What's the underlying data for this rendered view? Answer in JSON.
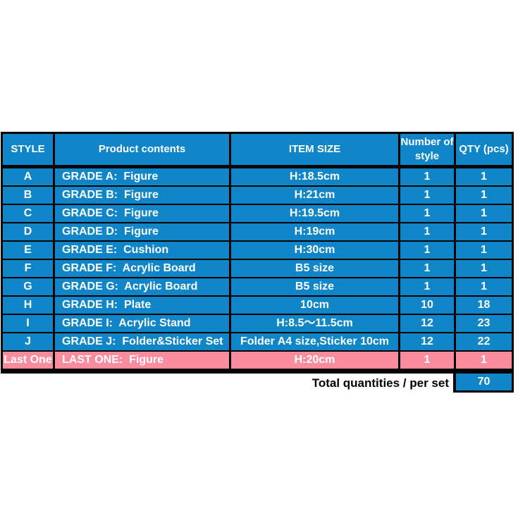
{
  "page": {
    "background": "#ffffff"
  },
  "colors": {
    "cell_blue": "#1086c8",
    "last_one_pink": "#fa8c9e",
    "border_black": "#000000",
    "cell_text_white": "#ffffff",
    "total_text_black": "#000000"
  },
  "table": {
    "headers": {
      "style": "STYLE",
      "contents": "Product contents",
      "size": "ITEM SIZE",
      "styles": "Number of style",
      "qty": "QTY (pcs)"
    },
    "rows": [
      {
        "style": "A",
        "contents": "GRADE A:  Figure",
        "size": "H:18.5cm",
        "styles": "1",
        "qty": "1"
      },
      {
        "style": "B",
        "contents": "GRADE B:  Figure",
        "size": "H:21cm",
        "styles": "1",
        "qty": "1"
      },
      {
        "style": "C",
        "contents": "GRADE C:  Figure",
        "size": "H:19.5cm",
        "styles": "1",
        "qty": "1"
      },
      {
        "style": "D",
        "contents": "GRADE D:  Figure",
        "size": "H:19cm",
        "styles": "1",
        "qty": "1"
      },
      {
        "style": "E",
        "contents": "GRADE E:  Cushion",
        "size": "H:30cm",
        "styles": "1",
        "qty": "1"
      },
      {
        "style": "F",
        "contents": "GRADE F:  Acrylic Board",
        "size": "B5 size",
        "styles": "1",
        "qty": "1"
      },
      {
        "style": "G",
        "contents": "GRADE G:  Acrylic Board",
        "size": "B5 size",
        "styles": "1",
        "qty": "1"
      },
      {
        "style": "H",
        "contents": "GRADE H:  Plate",
        "size": "10cm",
        "styles": "10",
        "qty": "18"
      },
      {
        "style": "I",
        "contents": "GRADE I:  Acrylic Stand",
        "size": "H:8.5～11.5cm",
        "styles": "12",
        "qty": "23"
      },
      {
        "style": "J",
        "contents": "GRADE J:  Folder&Sticker Set",
        "size": "Folder A4 size,Sticker 10cm",
        "styles": "12",
        "qty": "22"
      },
      {
        "style": "Last One",
        "contents": "LAST ONE:  Figure",
        "size": "H:20cm",
        "styles": "1",
        "qty": "1",
        "highlight": "last-one"
      }
    ],
    "total": {
      "label": "Total quantities / per set",
      "value": "70"
    }
  }
}
